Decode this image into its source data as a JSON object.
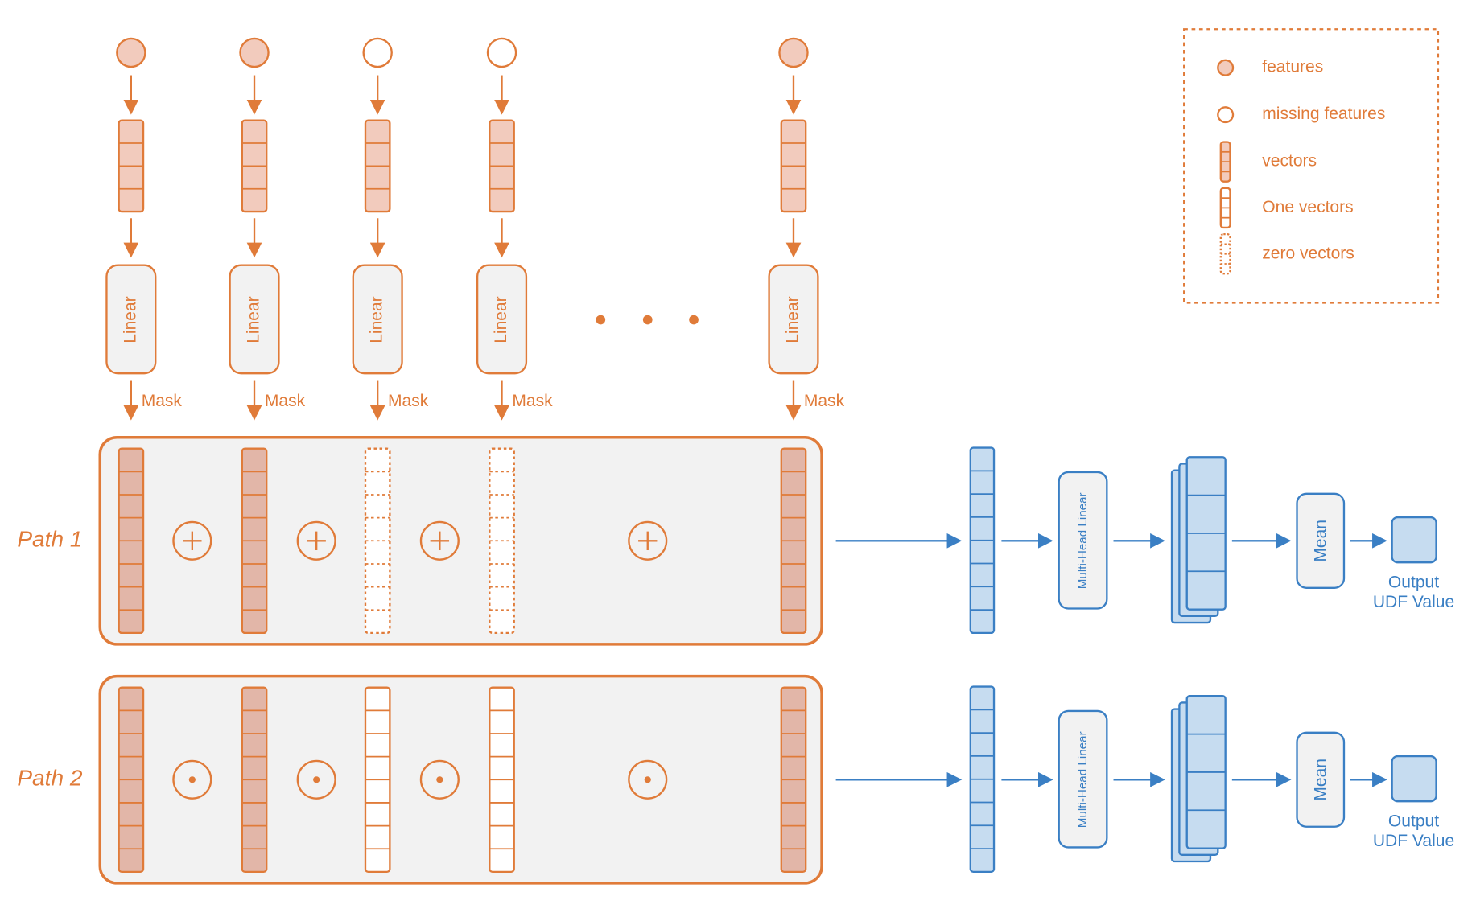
{
  "legend": {
    "items": [
      "features",
      "missing features",
      "vectors",
      "One vectors",
      "zero vectors"
    ]
  },
  "columns": [
    {
      "linear": "Linear",
      "mask": "Mask"
    },
    {
      "linear": "Linear",
      "mask": "Mask"
    },
    {
      "linear": "Linear",
      "mask": "Mask"
    },
    {
      "linear": "Linear",
      "mask": "Mask"
    },
    {
      "linear": "Linear",
      "mask": "Mask"
    }
  ],
  "paths": [
    {
      "label": "Path 1",
      "head": "Multi-Head Linear",
      "pool": "Mean",
      "output": [
        "Output",
        "UDF Value"
      ]
    },
    {
      "label": "Path 2",
      "head": "Multi-Head Linear",
      "pool": "Mean",
      "output": [
        "Output",
        "UDF Value"
      ]
    }
  ]
}
